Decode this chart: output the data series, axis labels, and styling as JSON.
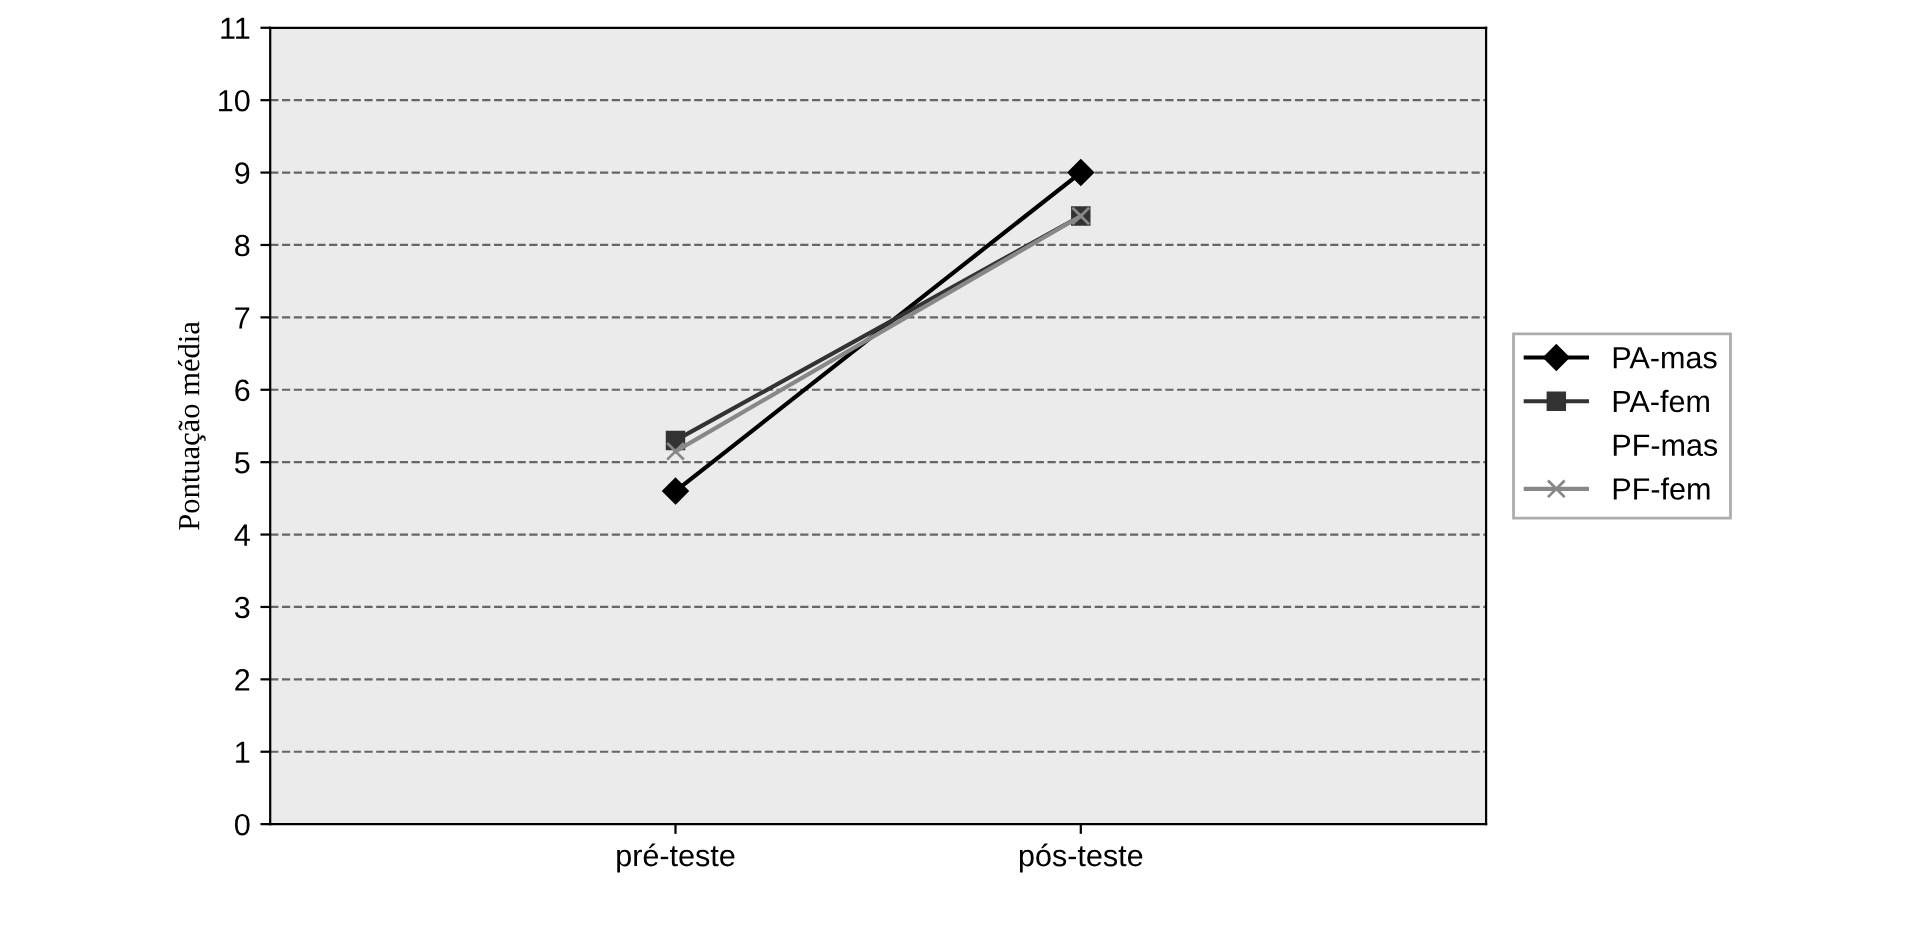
{
  "chart_data": {
    "type": "line",
    "ylabel": "Pontuação média",
    "categories": [
      "pré-teste",
      "pós-teste"
    ],
    "series": [
      {
        "name": "PA-mas",
        "color": "#000000",
        "marker": "diamond",
        "values": [
          4.6,
          9.0
        ]
      },
      {
        "name": "PA-fem",
        "color": "#333333",
        "marker": "square",
        "values": [
          5.3,
          8.4
        ]
      },
      {
        "name": "PF-mas",
        "marker": "none",
        "values": [
          null,
          null
        ]
      },
      {
        "name": "PF-fem",
        "color": "#888888",
        "marker": "cross",
        "values": [
          5.15,
          8.4
        ]
      }
    ],
    "ylim": [
      0,
      11
    ],
    "yticks": [
      0,
      1,
      2,
      3,
      4,
      5,
      6,
      7,
      8,
      9,
      10,
      11
    ],
    "grid": "y",
    "legend": "right",
    "line_style": "solid"
  }
}
